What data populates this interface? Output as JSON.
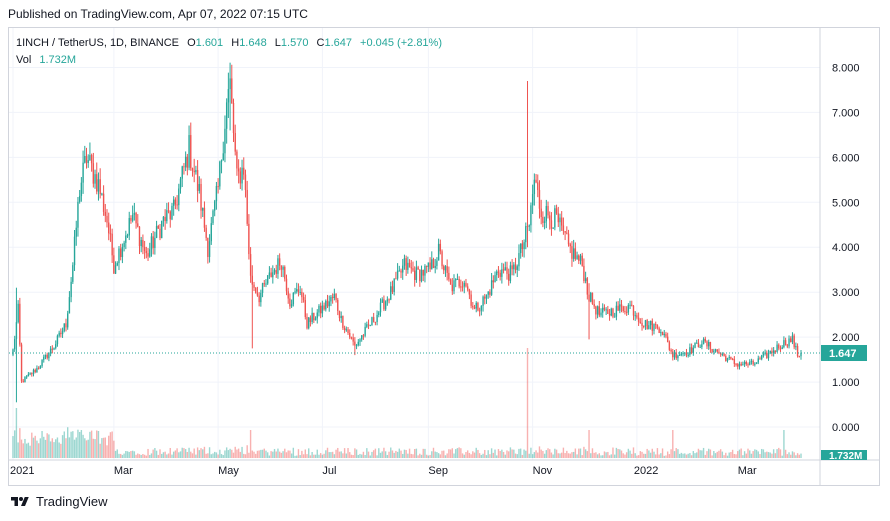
{
  "published": "Published on TradingView.com, Apr 07, 2022 07:15 UTC",
  "brand": "TradingView",
  "legend": {
    "symbol": "1INCH / TetherUS, 1D, BINANCE",
    "o_label": "O",
    "o_value": "1.601",
    "h_label": "H",
    "h_value": "1.648",
    "l_label": "L",
    "l_value": "1.570",
    "c_label": "C",
    "c_value": "1.647",
    "change": "+0.045 (+2.81%)",
    "vol_label": "Vol",
    "vol_value": "1.732M"
  },
  "colors": {
    "up": "#26a69a",
    "down": "#ef5350",
    "grid": "#f0f3fa",
    "axis_text": "#131722"
  },
  "chart_data": {
    "type": "candlestick",
    "title": "1INCH / TetherUS, 1D, BINANCE",
    "ylim": [
      -0.6,
      8.7
    ],
    "y_ticks": [
      "8.000",
      "7.000",
      "6.000",
      "5.000",
      "4.000",
      "3.000",
      "2.000",
      "1.000",
      "0.000"
    ],
    "x_ticks": [
      "2021",
      "Mar",
      "May",
      "Jul",
      "Sep",
      "Nov",
      "2022",
      "Mar"
    ],
    "last_price": 1.647,
    "last_price_label": "1.647",
    "volume_label": "1.732M",
    "close_anchors": [
      [
        "2021-01-01",
        1.7
      ],
      [
        "2021-01-04",
        2.6
      ],
      [
        "2021-01-06",
        1.0
      ],
      [
        "2021-01-15",
        1.3
      ],
      [
        "2021-01-25",
        1.8
      ],
      [
        "2021-02-01",
        2.3
      ],
      [
        "2021-02-05",
        3.6
      ],
      [
        "2021-02-09",
        5.3
      ],
      [
        "2021-02-13",
        6.0
      ],
      [
        "2021-02-20",
        5.4
      ],
      [
        "2021-02-25",
        4.6
      ],
      [
        "2021-03-01",
        3.6
      ],
      [
        "2021-03-05",
        4.0
      ],
      [
        "2021-03-12",
        4.7
      ],
      [
        "2021-03-20",
        3.8
      ],
      [
        "2021-03-30",
        4.6
      ],
      [
        "2021-04-05",
        4.8
      ],
      [
        "2021-04-14",
        6.2
      ],
      [
        "2021-04-20",
        5.2
      ],
      [
        "2021-04-25",
        4.0
      ],
      [
        "2021-05-01",
        5.3
      ],
      [
        "2021-05-06",
        7.2
      ],
      [
        "2021-05-08",
        7.6
      ],
      [
        "2021-05-12",
        5.5
      ],
      [
        "2021-05-16",
        5.8
      ],
      [
        "2021-05-20",
        3.3
      ],
      [
        "2021-05-25",
        2.9
      ],
      [
        "2021-06-01",
        3.4
      ],
      [
        "2021-06-07",
        3.7
      ],
      [
        "2021-06-12",
        2.8
      ],
      [
        "2021-06-18",
        3.1
      ],
      [
        "2021-06-22",
        2.3
      ],
      [
        "2021-06-30",
        2.6
      ],
      [
        "2021-07-08",
        2.9
      ],
      [
        "2021-07-12",
        2.4
      ],
      [
        "2021-07-20",
        1.8
      ],
      [
        "2021-07-31",
        2.4
      ],
      [
        "2021-08-10",
        3.0
      ],
      [
        "2021-08-18",
        3.6
      ],
      [
        "2021-08-25",
        3.4
      ],
      [
        "2021-09-02",
        3.5
      ],
      [
        "2021-09-07",
        3.9
      ],
      [
        "2021-09-14",
        3.1
      ],
      [
        "2021-09-22",
        3.3
      ],
      [
        "2021-09-28",
        2.6
      ],
      [
        "2021-10-05",
        2.9
      ],
      [
        "2021-10-12",
        3.5
      ],
      [
        "2021-10-20",
        3.4
      ],
      [
        "2021-10-26",
        4.0
      ],
      [
        "2021-10-30",
        4.5
      ],
      [
        "2021-11-02",
        5.5
      ],
      [
        "2021-11-06",
        4.8
      ],
      [
        "2021-11-15",
        4.6
      ],
      [
        "2021-11-22",
        4.0
      ],
      [
        "2021-11-30",
        3.6
      ],
      [
        "2021-12-04",
        2.9
      ],
      [
        "2021-12-10",
        2.5
      ],
      [
        "2021-12-20",
        2.6
      ],
      [
        "2021-12-28",
        2.7
      ],
      [
        "2022-01-05",
        2.3
      ],
      [
        "2022-01-15",
        2.2
      ],
      [
        "2022-01-22",
        1.6
      ],
      [
        "2022-02-01",
        1.7
      ],
      [
        "2022-02-08",
        1.9
      ],
      [
        "2022-02-20",
        1.6
      ],
      [
        "2022-02-28",
        1.4
      ],
      [
        "2022-03-10",
        1.4
      ],
      [
        "2022-03-18",
        1.6
      ],
      [
        "2022-03-27",
        1.85
      ],
      [
        "2022-04-02",
        1.95
      ],
      [
        "2022-04-05",
        1.6
      ],
      [
        "2022-04-07",
        1.647
      ]
    ],
    "spikes": [
      {
        "date": "2021-01-03",
        "high": 3.1,
        "low": 0.55
      },
      {
        "date": "2021-05-08",
        "high": 7.85,
        "low": 6.6
      },
      {
        "date": "2021-05-21",
        "high": 3.6,
        "low": 1.75
      },
      {
        "date": "2021-07-20",
        "high": 2.0,
        "low": 1.6
      },
      {
        "date": "2021-10-29",
        "high": 7.7,
        "low": 4.0
      },
      {
        "date": "2021-12-04",
        "high": 3.2,
        "low": 1.95
      }
    ],
    "volume_spikes": [
      "2021-01-03",
      "2021-02-10",
      "2021-05-20",
      "2021-10-29",
      "2021-12-04",
      "2022-01-22",
      "2022-03-28"
    ]
  }
}
